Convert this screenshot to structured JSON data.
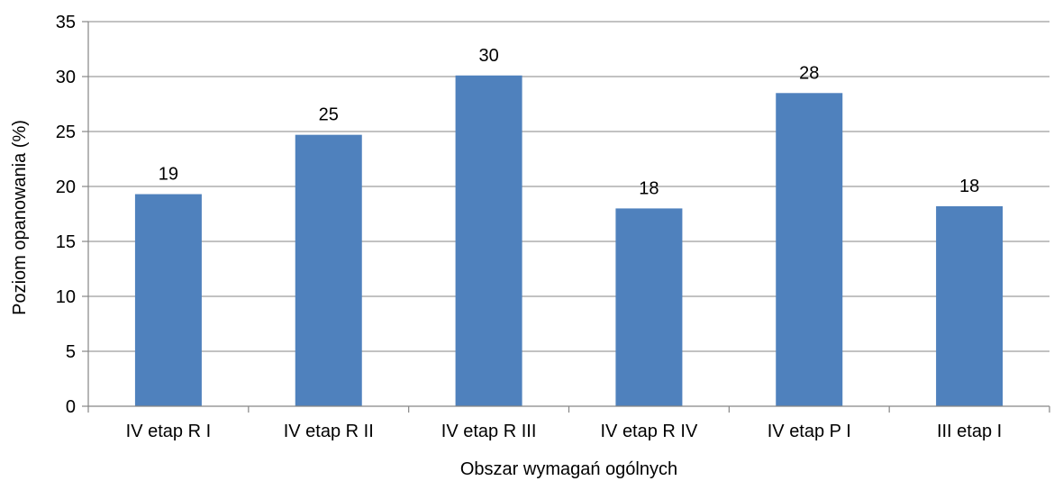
{
  "chart_data": {
    "type": "bar",
    "title": "",
    "xlabel": "Obszar wymagań ogólnych",
    "ylabel": "Poziom opanowania (%)",
    "categories": [
      "IV etap R I",
      "IV etap R II",
      "IV etap R III",
      "IV etap R IV",
      "IV etap P I",
      "III etap I"
    ],
    "values": [
      19.3,
      24.7,
      30.1,
      18.0,
      28.5,
      18.2
    ],
    "data_labels": [
      "19",
      "25",
      "30",
      "18",
      "28",
      "18"
    ],
    "ylim": [
      0,
      35
    ],
    "yticks": [
      "0",
      "5",
      "10",
      "15",
      "20",
      "25",
      "30",
      "35"
    ],
    "grid": true,
    "legend": "none",
    "bar_color": "#4F81BD"
  }
}
